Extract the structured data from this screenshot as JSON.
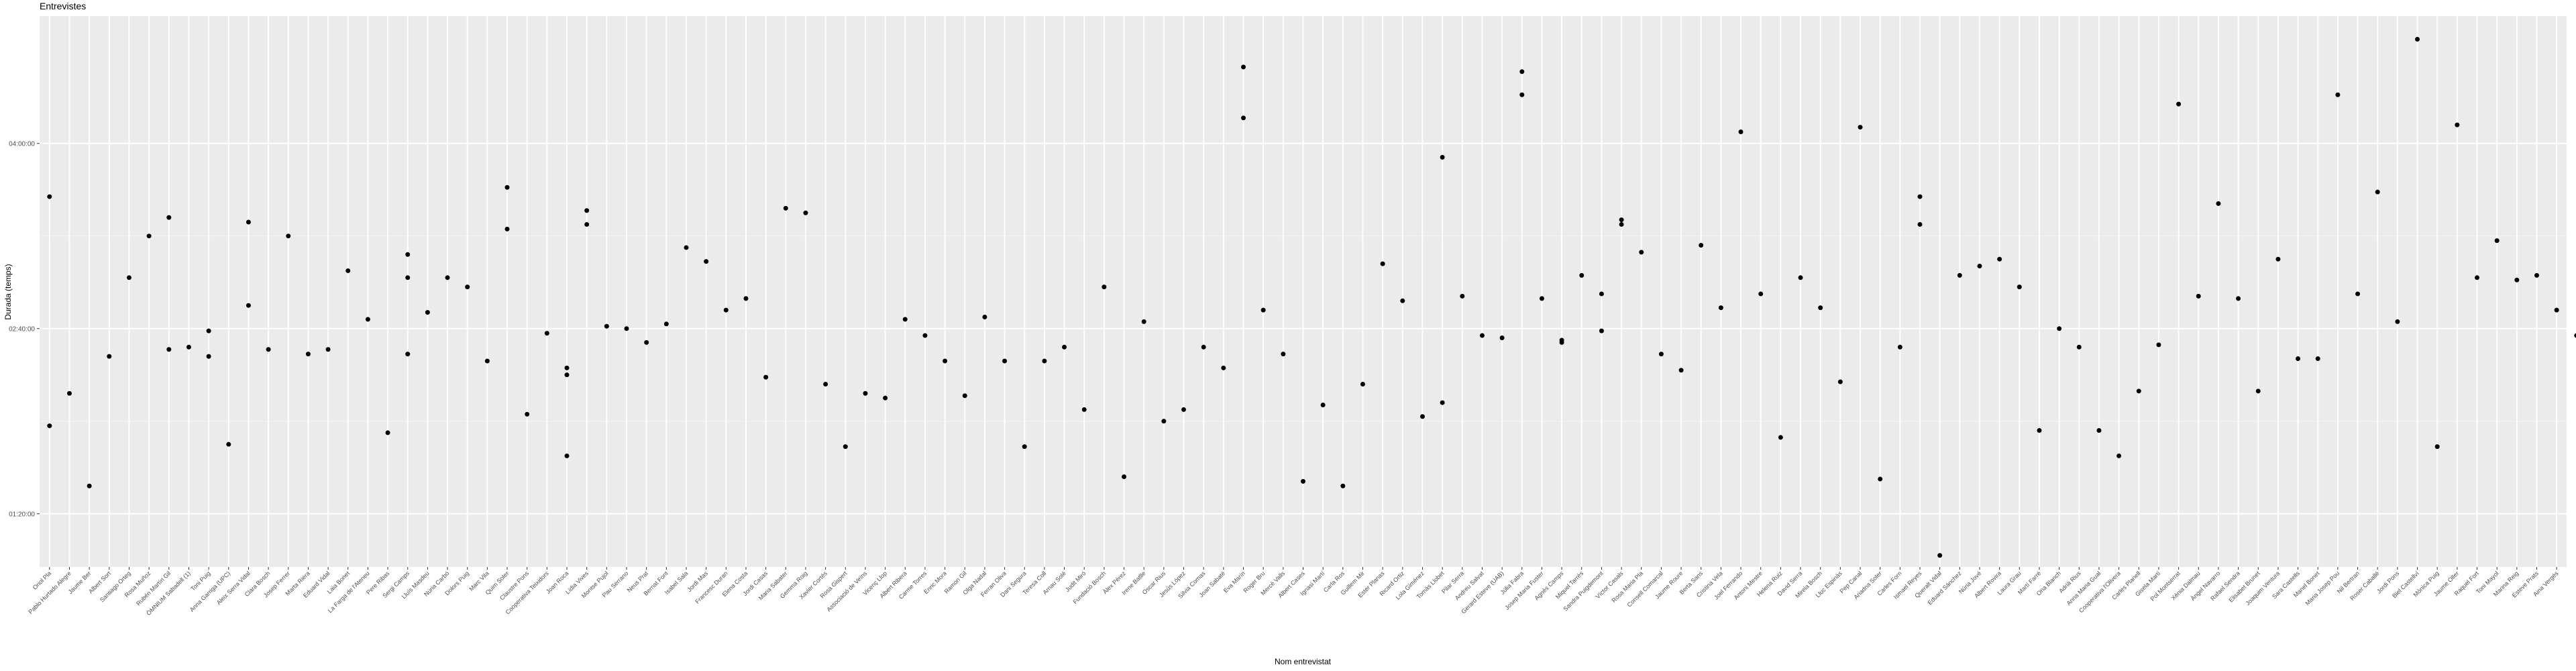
{
  "chart_data": {
    "type": "scatter",
    "title": "Entrevistes",
    "x_label": "Nom entrevistat",
    "y_label": "Durada (temps)",
    "categories": [
      "Oriol Pla",
      "Pablo Hurtado Alegre",
      "Jaume Ber",
      "Albert Sort",
      "Santiago Orteg",
      "Rosa Muñoz",
      "Rubén Martín Gil",
      "ÒMNIUM Sabadell (1)",
      "Toni Puig",
      "Anna Garriga (UPC)",
      "Aleix Serra Vidal",
      "Clara Bosch",
      "Josep Ferrer",
      "Marta Riera",
      "Eduard Vidal",
      "Laia Bonet",
      "La Farga de l'Ateneu",
      "Pere Ribas",
      "Sergi Camps",
      "Lluís Masdeu",
      "Núria Carbó",
      "Dolors Puig",
      "Marc Vila",
      "Quim Soler",
      "Claustre Pons",
      "Cooperativa Teixidors",
      "Joan Roca",
      "Lídia Vives",
      "Montse Pujol",
      "Pau Serrano",
      "Neus Prat",
      "Bernat Font",
      "Isabel Sala",
      "Jordi Mas",
      "Francesc Duran",
      "Elena Costa",
      "Jordi Casas",
      "Maria Sabater",
      "Gemma Roig",
      "Xavier Cortés",
      "Rosa Gispert",
      "Associació de Veïns",
      "Vicenç Llop",
      "Albert Ribera",
      "Carme Torres",
      "Enric Mora",
      "Ramon Gil",
      "Olga Nadal",
      "Ferran Oliva",
      "Dani Segura",
      "Teresa Coll",
      "Arnau Solé",
      "Judit Miró",
      "Fundació Bosch",
      "Àlex Pérez",
      "Irene Batlle",
      "Oscar Rius",
      "Jesús López",
      "Sílvia Comas",
      "Joan Sabaté",
      "Eva Marín",
      "Roger Bru",
      "Mercè Valls",
      "Albert Cases",
      "Ignasi Martí",
      "Carla Ros",
      "Guillem Mir",
      "Ester Planas",
      "Ricard Ortiz",
      "Lola Giménez",
      "Tomàs Llobet",
      "Pilar Serra",
      "Andreu Salvat",
      "Gerard Esteve (UAB)",
      "Júlia Fabra",
      "Josep Maria Fuster",
      "Agnès Camps",
      "Miquel Tarrés",
      "Sandra Puigdemont",
      "Víctor Casals",
      "Rosa Maria Pla",
      "Consell Comarcal",
      "Jaume Roure",
      "Berta Sans",
      "Cristina Vela",
      "Joel Ferrando",
      "Antoni Mestre",
      "Helena Ruiz",
      "David Serra",
      "Mireia Bosch",
      "Lluc Espinàs",
      "Pep Canal",
      "Ariadna Soler",
      "Carles Forn",
      "Ismael Reyes",
      "Queralt Vidal",
      "Eduard Sánchez",
      "Núria Jové",
      "Albert Rovira",
      "Laura Grau",
      "Martí Farré",
      "Ona Blanch",
      "Adrià Rius",
      "Anna Maria Gual",
      "Cooperativa l'Olivera",
      "Carles Planell",
      "Gisela Martí",
      "Pol Montserrat",
      "Xènia Dalmau",
      "Àngel Navarro",
      "Rafael Sendra",
      "Elisabet Brunet",
      "Joaquim Ventura",
      "Sara Castells",
      "Manel Bonet",
      "Maria Josep Pou",
      "Nil Bertran",
      "Roser Caballé",
      "Jordi Pons",
      "Biel Castellví",
      "Mònica Puig",
      "Jaume Oller",
      "Raquel Fort",
      "Toni Mayol",
      "Marina Reig",
      "Esteve Prats",
      "Aina Vergés"
    ],
    "values": [
      [
        217,
        118
      ],
      [
        132
      ],
      [
        92
      ],
      [
        148
      ],
      [
        182
      ],
      [
        200
      ],
      [
        208,
        151
      ],
      [
        152
      ],
      [
        159,
        148
      ],
      [
        110
      ],
      [
        206,
        170
      ],
      [
        151
      ],
      [
        200
      ],
      [
        149
      ],
      [
        151
      ],
      [
        185
      ],
      [
        164
      ],
      [
        115
      ],
      [
        192,
        182,
        149
      ],
      [
        167
      ],
      [
        182
      ],
      [
        178
      ],
      [
        146
      ],
      [
        221,
        203
      ],
      [
        123
      ],
      [
        158
      ],
      [
        143,
        140,
        105
      ],
      [
        211,
        205
      ],
      [
        161
      ],
      [
        160
      ],
      [
        154
      ],
      [
        162
      ],
      [
        195
      ],
      [
        189
      ],
      [
        168
      ],
      [
        173
      ],
      [
        139
      ],
      [
        212
      ],
      [
        210
      ],
      [
        136
      ],
      [
        109
      ],
      [
        132
      ],
      [
        130
      ],
      [
        164
      ],
      [
        157
      ],
      [
        146
      ],
      [
        131
      ],
      [
        165
      ],
      [
        146
      ],
      [
        109
      ],
      [
        146
      ],
      [
        152
      ],
      [
        125
      ],
      [
        178
      ],
      [
        96
      ],
      [
        163
      ],
      [
        120
      ],
      [
        125
      ],
      [
        152
      ],
      [
        143
      ],
      [
        273,
        251
      ],
      [
        168
      ],
      [
        149
      ],
      [
        94
      ],
      [
        127
      ],
      [
        92
      ],
      [
        136
      ],
      [
        188
      ],
      [
        172
      ],
      [
        122
      ],
      [
        234,
        128
      ],
      [
        174
      ],
      [
        157
      ],
      [
        156
      ],
      [
        271,
        261
      ],
      [
        173
      ],
      [
        155,
        154
      ],
      [
        183
      ],
      [
        175,
        159
      ],
      [
        207,
        205
      ],
      [
        193
      ],
      [
        149
      ],
      [
        142
      ],
      [
        196
      ],
      [
        169
      ],
      [
        245
      ],
      [
        175
      ],
      [
        113
      ],
      [
        182
      ],
      [
        169
      ],
      [
        137
      ],
      [
        247
      ],
      [
        95
      ],
      [
        152
      ],
      [
        217,
        205
      ],
      [
        62
      ],
      [
        183
      ],
      [
        187
      ],
      [
        190
      ],
      [
        178
      ],
      [
        116
      ],
      [
        160
      ],
      [
        152
      ],
      [
        116
      ],
      [
        105
      ],
      [
        133
      ],
      [
        153
      ],
      [
        257
      ],
      [
        174
      ],
      [
        214
      ],
      [
        173
      ],
      [
        133
      ],
      [
        190
      ],
      [
        147
      ],
      [
        147
      ],
      [
        261
      ],
      [
        175
      ],
      [
        219
      ],
      [
        163
      ],
      [
        285
      ],
      [
        109
      ],
      [
        248
      ],
      [
        182
      ],
      [
        198
      ],
      [
        181
      ],
      [
        183
      ],
      [
        168
      ],
      [
        157
      ]
    ],
    "color": "#000000",
    "ylim": [
      57,
      295
    ],
    "yticks": [
      {
        "value": 80,
        "label": "01:20:00"
      },
      {
        "value": 160,
        "label": "02:40:00"
      },
      {
        "value": 240,
        "label": "04:00:00"
      }
    ],
    "grid": true
  }
}
